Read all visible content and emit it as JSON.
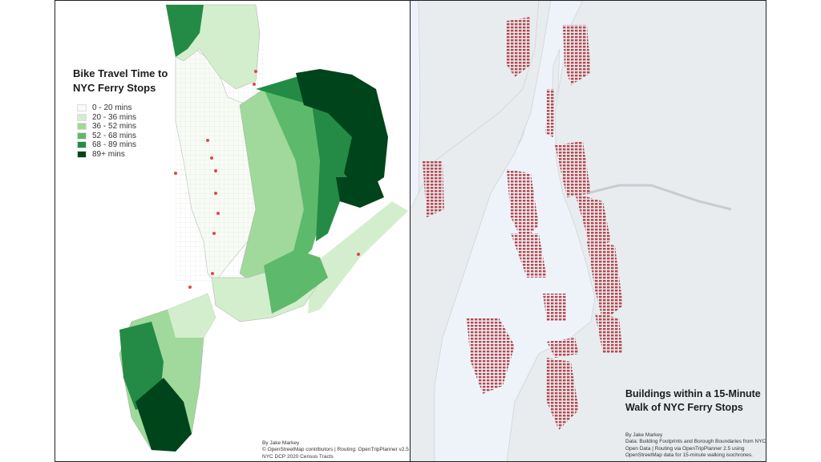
{
  "left_map": {
    "title": "Bike Travel Time to NYC Ferry Stops",
    "legend": [
      {
        "label": "0 - 20 mins",
        "color": "#f7fcf5"
      },
      {
        "label": "20 - 36 mins",
        "color": "#d3eecd"
      },
      {
        "label": "36 - 52 mins",
        "color": "#a0d99b"
      },
      {
        "label": "52 - 68 mins",
        "color": "#5db96b"
      },
      {
        "label": "68 - 89 mins",
        "color": "#238b45"
      },
      {
        "label": "89+ mins",
        "color": "#00441b"
      }
    ],
    "ferry_stop_color": "#e0474c",
    "credits": [
      "By Jake Markey",
      "© OpenStreetMap contributors | Routing: OpenTripPlanner v2.5",
      "NYC DCP 2020 Census Tracts"
    ]
  },
  "right_map": {
    "title": "Buildings within a 15-Minute Walk of NYC Ferry Stops",
    "building_color": "#b5484f",
    "land_color": "#e8ecef",
    "water_color": "#eef3fa",
    "credits": [
      "By Jake Markey",
      "Data: Building Footprints and Borough Boundaries from NYC Open Data | Routing via OpenTripPlanner 2.5 using OpenStreetMap data for 15-minute walking isochrones."
    ]
  }
}
